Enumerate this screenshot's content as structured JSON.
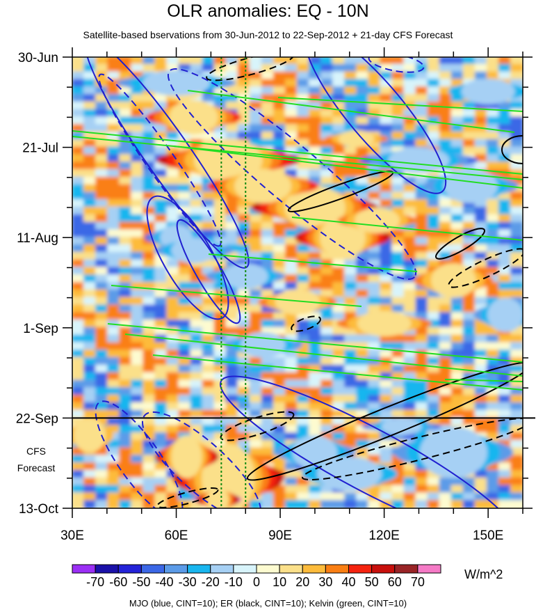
{
  "chart_data": {
    "type": "heatmap",
    "title": "OLR anomalies: EQ - 10N",
    "subtitle": "Satellite-based bservations from 30-Jun-2012 to 22-Sep-2012 + 21-day CFS Forecast",
    "x_range": [
      30,
      160
    ],
    "x_ticks": [
      {
        "value": 30,
        "label": "30E"
      },
      {
        "value": 60,
        "label": "60E"
      },
      {
        "value": 90,
        "label": "90E"
      },
      {
        "value": 120,
        "label": "120E"
      },
      {
        "value": 150,
        "label": "150E"
      }
    ],
    "y_range_days": [
      0,
      105
    ],
    "y_ticks": [
      {
        "day": 0,
        "label": "30-Jun"
      },
      {
        "day": 21,
        "label": "21-Jul"
      },
      {
        "day": 42,
        "label": "11-Aug"
      },
      {
        "day": 63,
        "label": "1-Sep"
      },
      {
        "day": 84,
        "label": "22-Sep"
      },
      {
        "day": 105,
        "label": "13-Oct"
      }
    ],
    "forecast_start_day": 84,
    "forecast_label_line1": "CFS",
    "forecast_label_line2": "Forecast",
    "reference_longitudes": [
      73,
      80
    ],
    "units": "W/m^2",
    "colorbar": {
      "labels": [
        "-70",
        "-60",
        "-50",
        "-40",
        "-30",
        "-20",
        "-10",
        "0",
        "10",
        "20",
        "30",
        "40",
        "50",
        "60",
        "70"
      ],
      "colors": [
        "#9b2ff5",
        "#1a11a8",
        "#2423d8",
        "#3b67e6",
        "#5b9be8",
        "#19b6ef",
        "#a6d0f4",
        "#d8f4fb",
        "#fdfbd0",
        "#fbe08a",
        "#fdbb3b",
        "#fa7f13",
        "#f5230f",
        "#c8100c",
        "#992426",
        "#f57ac6"
      ]
    },
    "blobs": [
      {
        "lon": 65,
        "day": 14,
        "rlon": 12,
        "rday": 4,
        "level": 4
      },
      {
        "lon": 62,
        "day": 8,
        "rlon": 5,
        "rday": 2,
        "level": 1
      },
      {
        "lon": 75,
        "day": 24,
        "rlon": 18,
        "rday": 5,
        "level": 5
      },
      {
        "lon": 100,
        "day": 35,
        "rlon": 16,
        "rday": 5,
        "level": 5
      },
      {
        "lon": 108,
        "day": 42,
        "rlon": 12,
        "rday": 5,
        "level": 5
      },
      {
        "lon": 85,
        "day": 30,
        "rlon": 14,
        "rday": 4,
        "level": 4
      },
      {
        "lon": 118,
        "day": 38,
        "rlon": 10,
        "rday": 3,
        "level": 3
      },
      {
        "lon": 60,
        "day": 42,
        "rlon": 8,
        "rday": 3,
        "level": -4
      },
      {
        "lon": 65,
        "day": 45,
        "rlon": 10,
        "rday": 3,
        "level": -3
      },
      {
        "lon": 80,
        "day": 51,
        "rlon": 10,
        "rday": 3,
        "level": -3
      },
      {
        "lon": 60,
        "day": 6,
        "rlon": 15,
        "rday": 3,
        "level": -3
      },
      {
        "lon": 112,
        "day": 19,
        "rlon": 8,
        "rday": 2,
        "level": 3
      },
      {
        "lon": 130,
        "day": 24,
        "rlon": 15,
        "rday": 3,
        "level": -4
      },
      {
        "lon": 145,
        "day": 30,
        "rlon": 12,
        "rday": 4,
        "level": -3
      },
      {
        "lon": 95,
        "day": 57,
        "rlon": 10,
        "rday": 3,
        "level": 3
      },
      {
        "lon": 120,
        "day": 62,
        "rlon": 12,
        "rday": 3,
        "level": 3
      },
      {
        "lon": 140,
        "day": 52,
        "rlon": 10,
        "rday": 4,
        "level": 3
      },
      {
        "lon": 85,
        "day": 67,
        "rlon": 10,
        "rday": 3,
        "level": -3
      },
      {
        "lon": 125,
        "day": 86,
        "rlon": 10,
        "rday": 2,
        "level": -4
      },
      {
        "lon": 140,
        "day": 92,
        "rlon": 15,
        "rday": 6,
        "level": -3
      },
      {
        "lon": 100,
        "day": 92,
        "rlon": 10,
        "rday": 4,
        "level": -3
      },
      {
        "lon": 110,
        "day": 97,
        "rlon": 12,
        "rday": 4,
        "level": -2
      },
      {
        "lon": 75,
        "day": 98,
        "rlon": 14,
        "rday": 8,
        "level": 5
      },
      {
        "lon": 72,
        "day": 103,
        "rlon": 6,
        "rday": 3,
        "level": 7
      },
      {
        "lon": 63,
        "day": 93,
        "rlon": 8,
        "rday": 5,
        "level": 5
      },
      {
        "lon": 35,
        "day": 88,
        "rlon": 6,
        "rday": 4,
        "level": 2
      },
      {
        "lon": 155,
        "day": 60,
        "rlon": 8,
        "rday": 4,
        "level": -3
      },
      {
        "lon": 150,
        "day": 8,
        "rlon": 10,
        "rday": 3,
        "level": -2
      }
    ]
  },
  "footer": "MJO (blue, CINT=10); ER (black, CINT=10); Kelvin (green, CINT=10)"
}
